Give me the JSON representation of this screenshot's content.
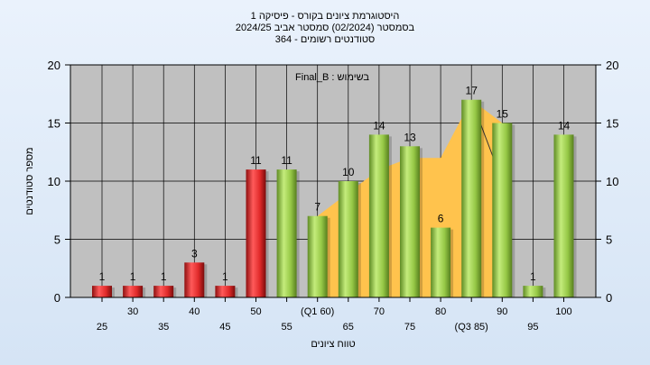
{
  "chart_data": {
    "type": "bar",
    "title_lines": [
      "היסטוגרמת ציונים בקורס - פיסיקה 1",
      "בסמסטר  (02/2024)  סמסטר אביב 2024/25",
      "סטודנטים רשומים - 364"
    ],
    "annotation": "בשימוש : Final_B",
    "xlabel": "טווח ציונים",
    "ylabel": "מספר סטודנטים",
    "ylim": [
      0,
      20
    ],
    "yticks": [
      0,
      5,
      10,
      15,
      20
    ],
    "categories": [
      "25",
      "30",
      "35",
      "40",
      "45",
      "50",
      "55",
      "(Q1 60)",
      "65",
      "70",
      "75",
      "80",
      "(Q3 85)",
      "90",
      "95",
      "100"
    ],
    "values": [
      1,
      1,
      1,
      3,
      1,
      11,
      11,
      7,
      10,
      14,
      13,
      6,
      17,
      15,
      1,
      14
    ],
    "bar_colors": [
      "red",
      "red",
      "red",
      "red",
      "red",
      "red",
      "green",
      "green",
      "green",
      "green",
      "green",
      "green",
      "green",
      "green",
      "green",
      "green"
    ],
    "area_range": {
      "from_category": "(Q1 60)",
      "to_category": "(Q3 85)",
      "values": [
        7,
        9,
        11,
        12,
        12,
        17,
        15
      ]
    },
    "colors": {
      "plot_background": "#c0c0c0",
      "red_bar": "#e03030",
      "green_bar": "#9acd50",
      "area": "#ffc34d",
      "grid": "#000000"
    },
    "grid": true,
    "legend": "none"
  }
}
